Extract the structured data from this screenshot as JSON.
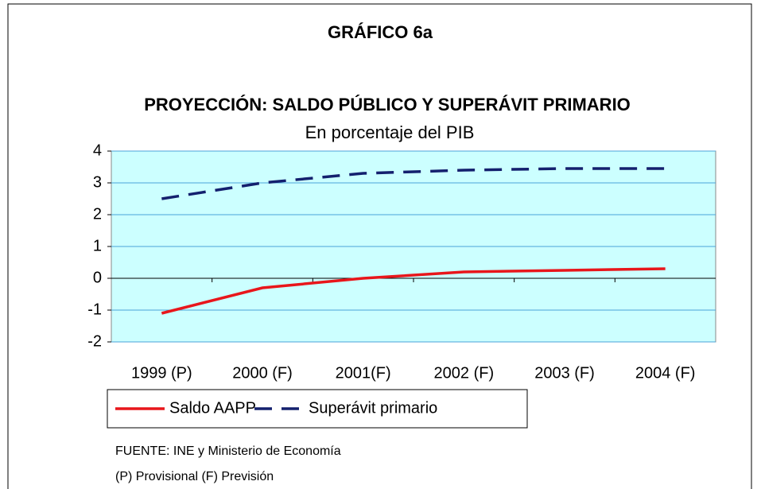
{
  "chart_data": {
    "type": "line",
    "title": "GRÁFICO 6a",
    "subtitle": "PROYECCIÓN: SALDO PÚBLICO Y SUPERÁVIT PRIMARIO",
    "subtitle2": "En porcentaje del PIB",
    "categories": [
      "1999 (P)",
      "2000 (F)",
      "2001(F)",
      "2002 (F)",
      "2003 (F)",
      "2004 (F)"
    ],
    "series": [
      {
        "name": "Saldo AAPP",
        "color": "#e8161b",
        "dashed": false,
        "values": [
          -1.1,
          -0.3,
          0.0,
          0.2,
          0.25,
          0.3
        ]
      },
      {
        "name": "Superávit primario",
        "color": "#14206e",
        "dashed": true,
        "values": [
          2.5,
          3.0,
          3.3,
          3.4,
          3.45,
          3.45
        ]
      }
    ],
    "ylim": [
      -2,
      4
    ],
    "yticks": [
      -2,
      -1,
      0,
      1,
      2,
      3,
      4
    ],
    "grid": true,
    "plot_background": "#ccffff",
    "notes": [
      "FUENTE: INE y Ministerio de Economía",
      "(P) Provisional (F) Previsión"
    ]
  }
}
